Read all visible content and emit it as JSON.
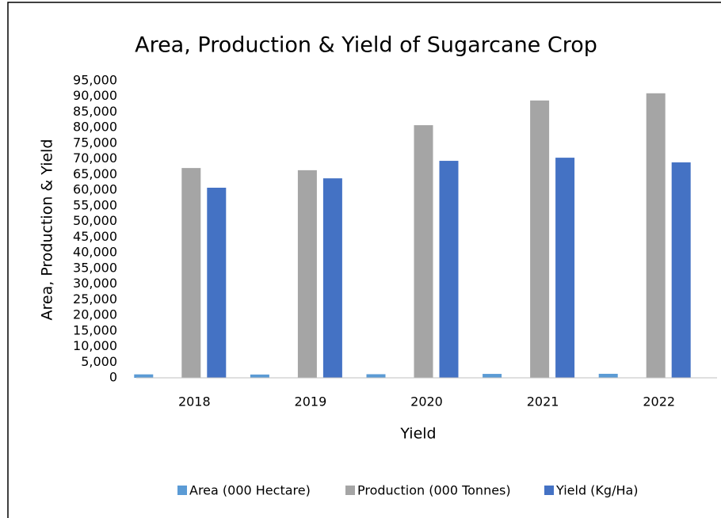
{
  "chart_data": {
    "type": "bar",
    "title": "Area, Production & Yield of Sugarcane Crop",
    "x_label": "Yield",
    "y_label": "Area, Production & Yield",
    "categories": [
      "2018",
      "2019",
      "2020",
      "2021",
      "2022"
    ],
    "series": [
      {
        "name": "Area (000 Hectare)",
        "color": "#5b9bd5",
        "values": [
          1100,
          1050,
          1150,
          1250,
          1280
        ]
      },
      {
        "name": "Production (000 Tonnes)",
        "color": "#a5a5a5",
        "values": [
          67100,
          66400,
          80800,
          88700,
          91000
        ]
      },
      {
        "name": "Yield (Kg/Ha)",
        "color": "#4472c4",
        "values": [
          60800,
          63800,
          69400,
          70400,
          68900
        ]
      }
    ],
    "ylim": [
      0,
      95000
    ],
    "yticks": [
      0,
      {
        "value": 5000,
        "label": "5,000"
      },
      {
        "value": 10000,
        "label": "10,000"
      },
      {
        "value": 15000,
        "label": "15,000"
      },
      {
        "value": 20000,
        "label": "20,000"
      },
      {
        "value": 25000,
        "label": "25,000"
      },
      {
        "value": 30000,
        "label": "30,000"
      },
      {
        "value": 35000,
        "label": "35,000"
      },
      {
        "value": 40000,
        "label": "40,000"
      },
      {
        "value": 45000,
        "label": "45,000"
      },
      {
        "value": 50000,
        "label": "50,000"
      },
      {
        "value": 55000,
        "label": "55,000"
      },
      {
        "value": 60000,
        "label": "60,000"
      },
      {
        "value": 65000,
        "label": "65,000"
      },
      {
        "value": 70000,
        "label": "70,000"
      },
      {
        "value": 75000,
        "label": "75,000"
      },
      {
        "value": 80000,
        "label": "80,000"
      },
      {
        "value": 85000,
        "label": "85,000"
      },
      {
        "value": 90000,
        "label": "90,000"
      },
      {
        "value": 95000,
        "label": "95,000"
      }
    ],
    "grid": false,
    "legend": "bottom"
  }
}
